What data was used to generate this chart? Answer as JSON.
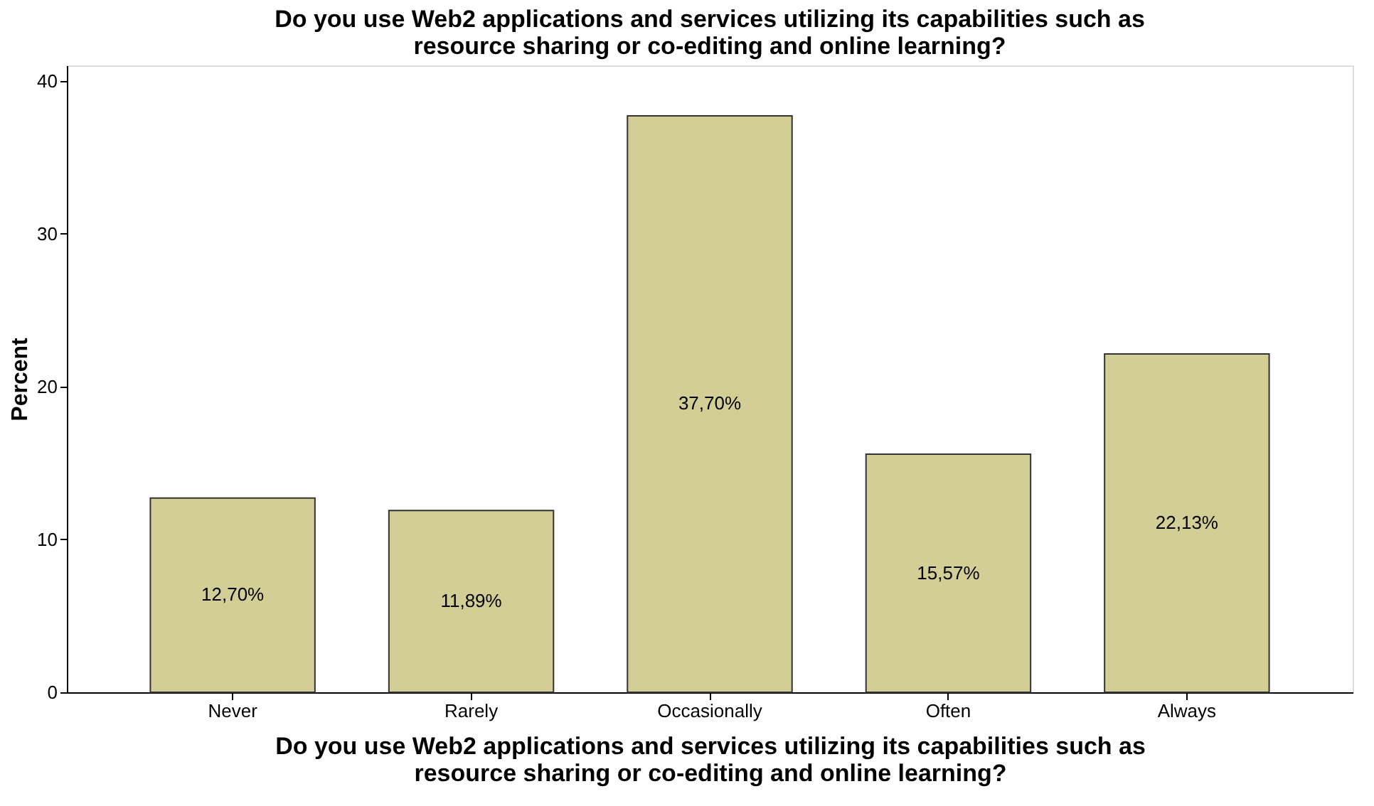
{
  "chart_data": {
    "type": "bar",
    "title": "Do you use Web2 applications and services utilizing its capabilities such as resource sharing or co-editing and online learning?",
    "xlabel": "Do you use Web2 applications and services utilizing its capabilities such as resource sharing or co-editing and online learning?",
    "ylabel": "Percent",
    "categories": [
      "Never",
      "Rarely",
      "Occasionally",
      "Often",
      "Always"
    ],
    "values": [
      12.7,
      11.89,
      37.7,
      15.57,
      22.13
    ],
    "value_labels": [
      "12,70%",
      "11,89%",
      "37,70%",
      "15,57%",
      "22,13%"
    ],
    "color": "#d3cd96",
    "ylim": [
      0,
      41
    ],
    "yticks": [
      0,
      10,
      20,
      30,
      40
    ],
    "grid": false
  }
}
